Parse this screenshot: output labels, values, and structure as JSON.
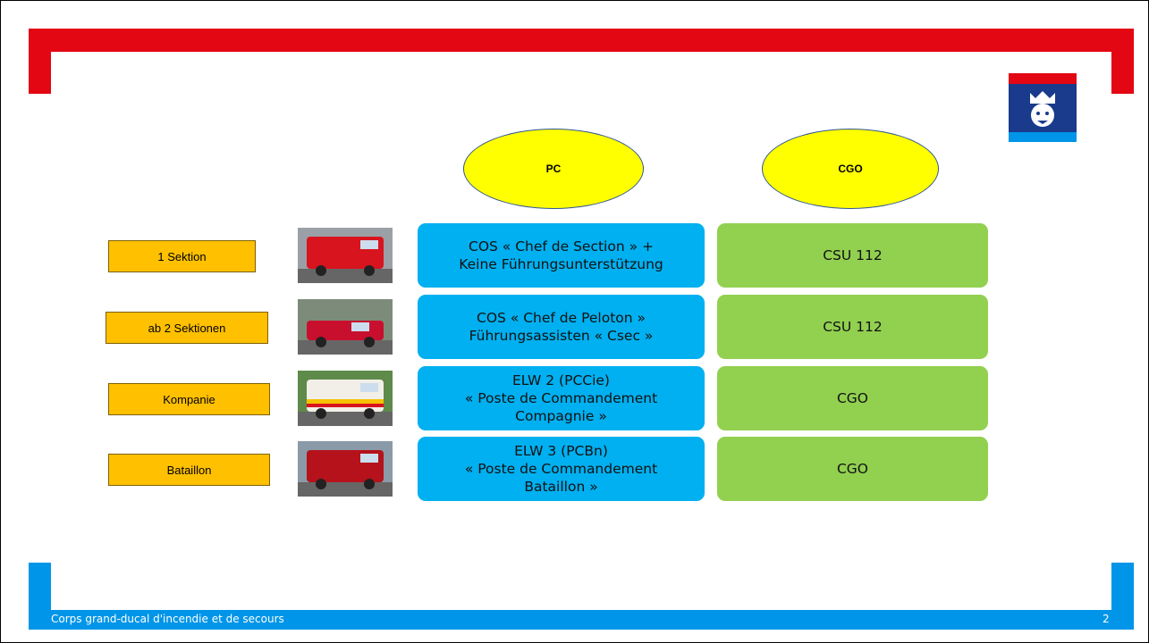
{
  "header": {
    "columns": [
      "PC",
      "CGO"
    ]
  },
  "rows": [
    {
      "label": "1 Sektion",
      "pc": [
        "COS « Chef de Section » +",
        "Keine Führungsunterstützung"
      ],
      "cgo": "CSU 112"
    },
    {
      "label": "ab 2 Sektionen",
      "pc": [
        "COS « Chef de Peloton »",
        "Führungsassisten « Csec »"
      ],
      "cgo": "CSU 112"
    },
    {
      "label": "Kompanie",
      "pc": [
        "ELW 2 (PCCie)",
        "« Poste de Commandement",
        "Compagnie »"
      ],
      "cgo": "CGO"
    },
    {
      "label": "Bataillon",
      "pc": [
        "ELW 3 (PCBn)",
        "« Poste de Commandement",
        "Bataillon »"
      ],
      "cgo": "CGO"
    }
  ],
  "footer": {
    "text": "Corps grand-ducal d'incendie et de secours",
    "page": "2"
  }
}
